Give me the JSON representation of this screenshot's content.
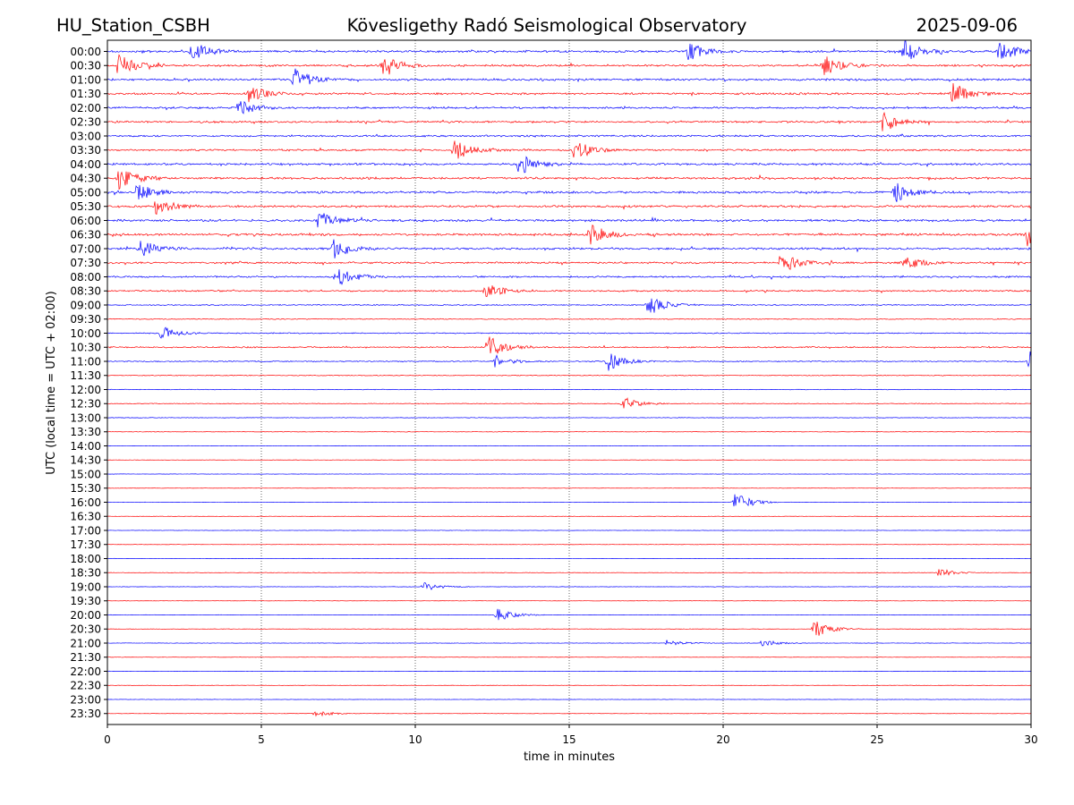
{
  "header": {
    "station": "HU_Station_CSBH",
    "observatory": "Kövesligethy Radó Seismological Observatory",
    "date": "2025-09-06"
  },
  "chart_data": {
    "type": "line",
    "title": "Kövesligethy Radó Seismological Observatory",
    "xlabel": "time in minutes",
    "ylabel": "UTC (local time = UTC + 02:00)",
    "xlim": [
      0,
      30
    ],
    "x_ticks": [
      "0",
      "5",
      "10",
      "15",
      "20",
      "25",
      "30"
    ],
    "grid": "vertical dotted lines at 5-minute intervals",
    "row_labels": [
      "00:00",
      "00:30",
      "01:00",
      "01:30",
      "02:00",
      "02:30",
      "03:00",
      "03:30",
      "04:00",
      "04:30",
      "05:00",
      "05:30",
      "06:00",
      "06:30",
      "07:00",
      "07:30",
      "08:00",
      "08:30",
      "09:00",
      "09:30",
      "10:00",
      "10:30",
      "11:00",
      "11:30",
      "12:00",
      "12:30",
      "13:00",
      "13:30",
      "14:00",
      "14:30",
      "15:00",
      "15:30",
      "16:00",
      "16:30",
      "17:00",
      "17:30",
      "18:00",
      "18:30",
      "19:00",
      "19:30",
      "20:00",
      "20:30",
      "21:00",
      "21:30",
      "22:00",
      "22:30",
      "23:00",
      "23:30"
    ],
    "row_colors": [
      "#0000ff",
      "#ff0000"
    ],
    "noise_levels": [
      0.55,
      0.55,
      0.55,
      0.55,
      0.52,
      0.52,
      0.5,
      0.5,
      0.55,
      0.6,
      0.6,
      0.6,
      0.62,
      0.62,
      0.55,
      0.5,
      0.45,
      0.42,
      0.3,
      0.25,
      0.3,
      0.35,
      0.3,
      0.22,
      0.18,
      0.2,
      0.16,
      0.14,
      0.12,
      0.1,
      0.1,
      0.1,
      0.1,
      0.1,
      0.1,
      0.1,
      0.1,
      0.12,
      0.12,
      0.1,
      0.12,
      0.12,
      0.12,
      0.1,
      0.1,
      0.1,
      0.1,
      0.1
    ],
    "events": [
      {
        "row": 0,
        "minute": 2.7,
        "amplitude": 0.9
      },
      {
        "row": 0,
        "minute": 18.8,
        "amplitude": 0.8
      },
      {
        "row": 0,
        "minute": 25.8,
        "amplitude": 1.0
      },
      {
        "row": 0,
        "minute": 28.9,
        "amplitude": 1.0
      },
      {
        "row": 1,
        "minute": 0.3,
        "amplitude": 1.0
      },
      {
        "row": 1,
        "minute": 8.9,
        "amplitude": 1.0
      },
      {
        "row": 1,
        "minute": 23.2,
        "amplitude": 1.0
      },
      {
        "row": 2,
        "minute": 6.0,
        "amplitude": 1.0
      },
      {
        "row": 3,
        "minute": 4.5,
        "amplitude": 0.8
      },
      {
        "row": 3,
        "minute": 27.4,
        "amplitude": 1.0
      },
      {
        "row": 4,
        "minute": 4.2,
        "amplitude": 0.7
      },
      {
        "row": 5,
        "minute": 25.1,
        "amplitude": 0.9
      },
      {
        "row": 7,
        "minute": 11.2,
        "amplitude": 1.0
      },
      {
        "row": 7,
        "minute": 15.1,
        "amplitude": 1.0
      },
      {
        "row": 8,
        "minute": 13.3,
        "amplitude": 1.0
      },
      {
        "row": 9,
        "minute": 0.3,
        "amplitude": 1.0
      },
      {
        "row": 10,
        "minute": 0.9,
        "amplitude": 0.8
      },
      {
        "row": 10,
        "minute": 25.5,
        "amplitude": 1.0
      },
      {
        "row": 11,
        "minute": 1.5,
        "amplitude": 0.8
      },
      {
        "row": 12,
        "minute": 6.8,
        "amplitude": 0.8
      },
      {
        "row": 13,
        "minute": 15.6,
        "amplitude": 1.0
      },
      {
        "row": 13,
        "minute": 29.8,
        "amplitude": 1.0
      },
      {
        "row": 14,
        "minute": 1.0,
        "amplitude": 0.8
      },
      {
        "row": 14,
        "minute": 7.3,
        "amplitude": 0.9
      },
      {
        "row": 15,
        "minute": 21.8,
        "amplitude": 1.0
      },
      {
        "row": 15,
        "minute": 25.8,
        "amplitude": 0.7
      },
      {
        "row": 16,
        "minute": 7.4,
        "amplitude": 1.0
      },
      {
        "row": 17,
        "minute": 12.2,
        "amplitude": 0.8
      },
      {
        "row": 18,
        "minute": 17.5,
        "amplitude": 1.0
      },
      {
        "row": 20,
        "minute": 1.7,
        "amplitude": 0.6
      },
      {
        "row": 21,
        "minute": 12.3,
        "amplitude": 1.0
      },
      {
        "row": 22,
        "minute": 12.5,
        "amplitude": 0.6
      },
      {
        "row": 22,
        "minute": 16.2,
        "amplitude": 0.8
      },
      {
        "row": 22,
        "minute": 29.9,
        "amplitude": 0.9
      },
      {
        "row": 25,
        "minute": 16.7,
        "amplitude": 0.6
      },
      {
        "row": 32,
        "minute": 20.3,
        "amplitude": 1.0
      },
      {
        "row": 37,
        "minute": 26.9,
        "amplitude": 0.4
      },
      {
        "row": 38,
        "minute": 10.2,
        "amplitude": 0.4
      },
      {
        "row": 40,
        "minute": 12.6,
        "amplitude": 0.6
      },
      {
        "row": 41,
        "minute": 22.9,
        "amplitude": 0.8
      },
      {
        "row": 42,
        "minute": 18.1,
        "amplitude": 0.3
      },
      {
        "row": 42,
        "minute": 21.2,
        "amplitude": 0.3
      },
      {
        "row": 47,
        "minute": 6.7,
        "amplitude": 0.3
      }
    ]
  }
}
